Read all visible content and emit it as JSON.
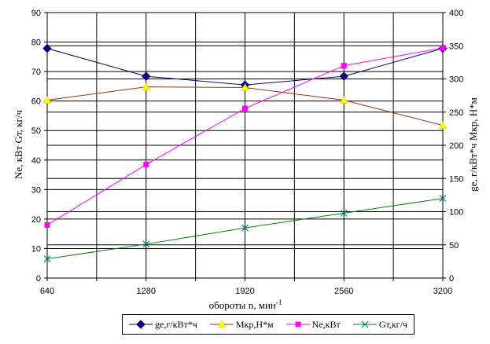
{
  "chart_data": {
    "type": "line",
    "xlabel": "обороты n, мин",
    "xlabel_sup": "-1",
    "ylabel_left": "Ne, кВт     Gт, кг/ч",
    "ylabel_right": "ge, г/кВт*ч     Мкр, Н*м",
    "x": [
      640,
      1280,
      1920,
      2560,
      3200
    ],
    "x_ticks": [
      "640",
      "1280",
      "1920",
      "2560",
      "3200"
    ],
    "xlim": [
      640,
      3200
    ],
    "ylim_left": [
      0,
      90
    ],
    "ylim_right": [
      0,
      400
    ],
    "y_ticks_left": [
      "0",
      "10",
      "20",
      "30",
      "40",
      "50",
      "60",
      "70",
      "80",
      "90"
    ],
    "y_ticks_right": [
      "0",
      "50",
      "100",
      "150",
      "200",
      "250",
      "300",
      "350",
      "400"
    ],
    "grid": true,
    "legend_position": "bottom",
    "series": [
      {
        "name": "ge,г/кВт*ч",
        "axis": "right",
        "marker": "diamond",
        "color": "#000080",
        "values": [
          346,
          304,
          291,
          304,
          346
        ]
      },
      {
        "name": "Мкр,Н*м",
        "axis": "right",
        "marker": "triangle",
        "color": "#ffff00",
        "line_color": "#993300",
        "values": [
          268,
          288,
          287,
          268,
          230
        ]
      },
      {
        "name": "Ne,кВт",
        "axis": "left",
        "marker": "square",
        "color": "#ff00ff",
        "values": [
          18,
          38.5,
          57.5,
          72,
          78
        ]
      },
      {
        "name": "Gт,кг/ч",
        "axis": "left",
        "marker": "x",
        "color": "#008080",
        "line_color": "#008000",
        "values": [
          6.5,
          11.5,
          17,
          22,
          27
        ]
      }
    ]
  }
}
